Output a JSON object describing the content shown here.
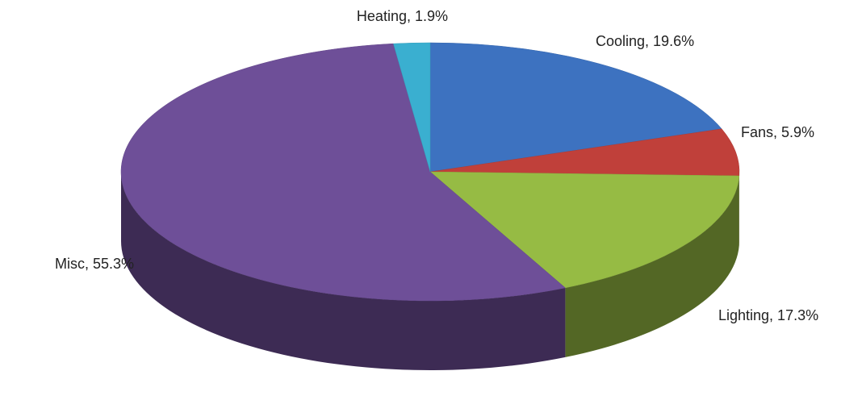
{
  "chart_data": {
    "type": "pie",
    "values": [
      19.6,
      5.9,
      17.3,
      55.3,
      1.9
    ],
    "value_labels": [
      "Cooling, 19.6%",
      "Fans, 5.9%",
      "Lighting, 17.3%",
      "Misc, 55.3%",
      "Heating, 1.9%"
    ],
    "colors": [
      "#3d72c0",
      "#c0403a",
      "#96bb44",
      "#6e4f98",
      "#3aafd0"
    ]
  }
}
